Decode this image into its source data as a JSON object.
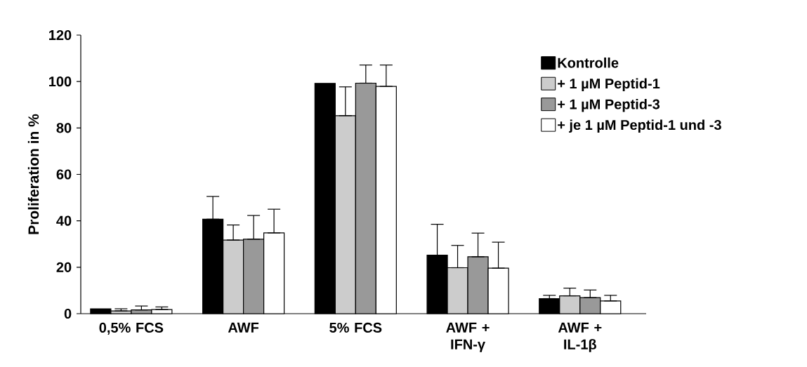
{
  "chart_data": {
    "type": "bar",
    "ylabel": "Proliferation in %",
    "categories": [
      "0,5% FCS",
      "AWF",
      "5% FCS",
      "AWF + IFN-γ",
      "AWF + IL-1β"
    ],
    "series": [
      {
        "name": "Kontrolle",
        "color": "#000000",
        "values": [
          2.1,
          40.7,
          99.2,
          25.2,
          6.5
        ],
        "errors": [
          null,
          [
            40.7,
            50.5
          ],
          null,
          [
            25.2,
            38.5
          ],
          [
            6.5,
            7.9
          ]
        ]
      },
      {
        "name": "+ 1 µM Peptid-1",
        "color": "#cccccc",
        "values": [
          1.2,
          31.7,
          85.3,
          19.8,
          7.7
        ],
        "errors": [
          [
            1.2,
            2.1
          ],
          [
            31.7,
            38.2
          ],
          [
            85.3,
            97.7
          ],
          [
            19.8,
            29.4
          ],
          [
            7.7,
            11.0
          ]
        ]
      },
      {
        "name": "+ 1 µM Peptid-3",
        "color": "#999999",
        "values": [
          1.6,
          32.1,
          99.3,
          24.5,
          6.9
        ],
        "errors": [
          [
            1.6,
            3.3
          ],
          [
            32.1,
            42.3
          ],
          [
            99.3,
            107.1
          ],
          [
            24.5,
            34.7
          ],
          [
            6.9,
            10.2
          ]
        ]
      },
      {
        "name": "+ je 1 µM Peptid-1 und -3",
        "color": "#ffffff",
        "values": [
          1.8,
          34.8,
          97.9,
          19.6,
          5.5
        ],
        "errors": [
          [
            1.8,
            2.9
          ],
          [
            34.8,
            45.0
          ],
          [
            97.9,
            107.1
          ],
          [
            19.6,
            30.8
          ],
          [
            5.5,
            7.9
          ]
        ]
      }
    ],
    "ylim": [
      0,
      120
    ],
    "yticks": [
      0,
      20,
      40,
      60,
      80,
      100,
      120
    ],
    "grid": false,
    "legend": "top right"
  }
}
